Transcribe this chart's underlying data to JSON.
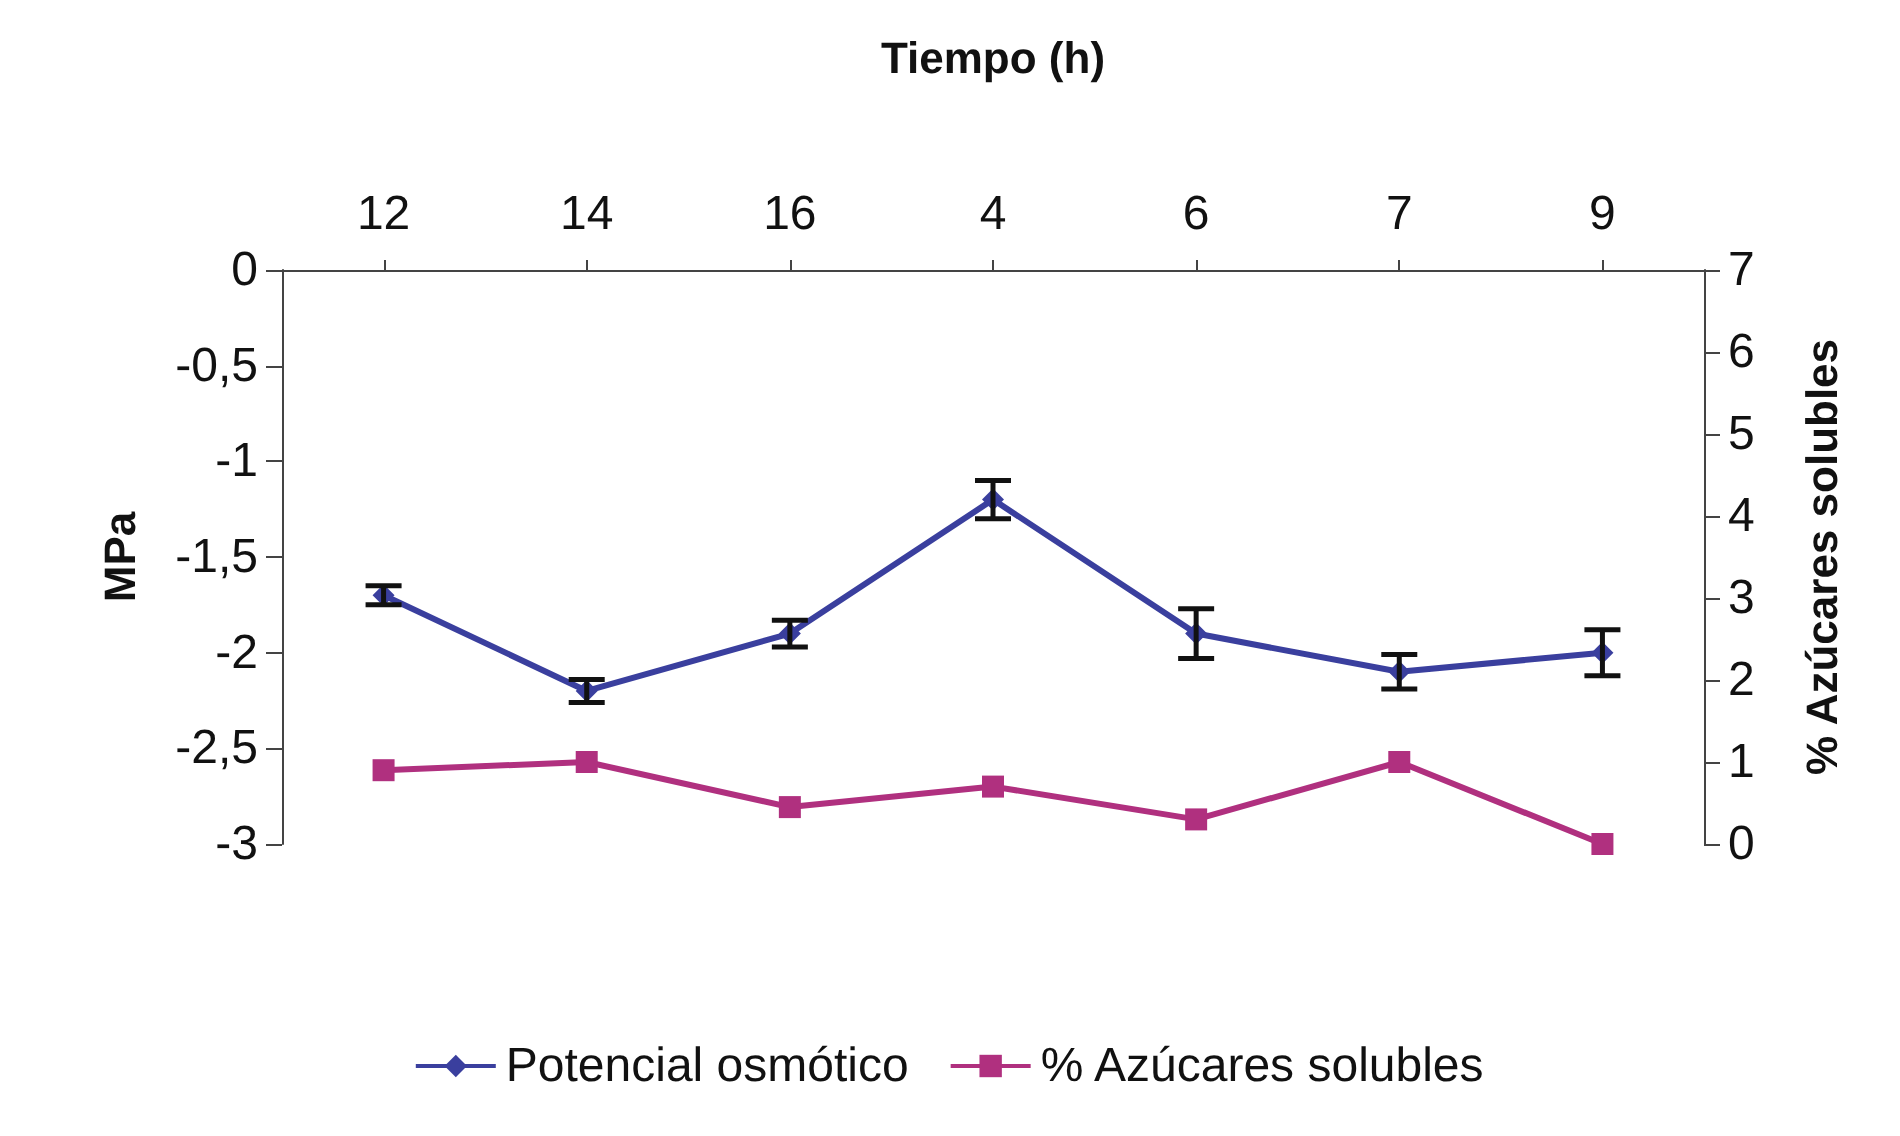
{
  "chart_data": {
    "type": "line",
    "xlabel": "Tiempo (h)",
    "ylabel": "MPa",
    "y2label": "% Azúcares solubles",
    "categories": [
      "12",
      "14",
      "16",
      "4",
      "6",
      "7",
      "9"
    ],
    "series": [
      {
        "name": "Potencial osmótico",
        "color": "#3a3f9e",
        "marker": "diamond",
        "values": [
          -1.7,
          -2.2,
          -1.9,
          -1.2,
          -1.9,
          -2.1,
          -2.0
        ],
        "errors": [
          0.05,
          0.06,
          0.07,
          0.1,
          0.13,
          0.09,
          0.12
        ]
      },
      {
        "name": "% Azúcares solubles",
        "color": "#b0307f",
        "marker": "square",
        "axis": "y2",
        "values": [
          0.9,
          1.0,
          0.45,
          0.7,
          0.3,
          1.0,
          0.0
        ]
      }
    ],
    "ylim": [
      -3,
      0
    ],
    "yticks": [
      {
        "value": -3,
        "label": "-3"
      },
      {
        "value": -2.5,
        "label": "-2,5"
      },
      {
        "value": -2,
        "label": "-2"
      },
      {
        "value": -1.5,
        "label": "-1,5"
      },
      {
        "value": -1,
        "label": "-1"
      },
      {
        "value": -0.5,
        "label": "-0,5"
      },
      {
        "value": 0,
        "label": "0"
      }
    ],
    "y2lim": [
      0,
      7
    ],
    "y2ticks": [
      0,
      1,
      2,
      3,
      4,
      5,
      6,
      7
    ],
    "grid": false,
    "legend": "bottom"
  }
}
